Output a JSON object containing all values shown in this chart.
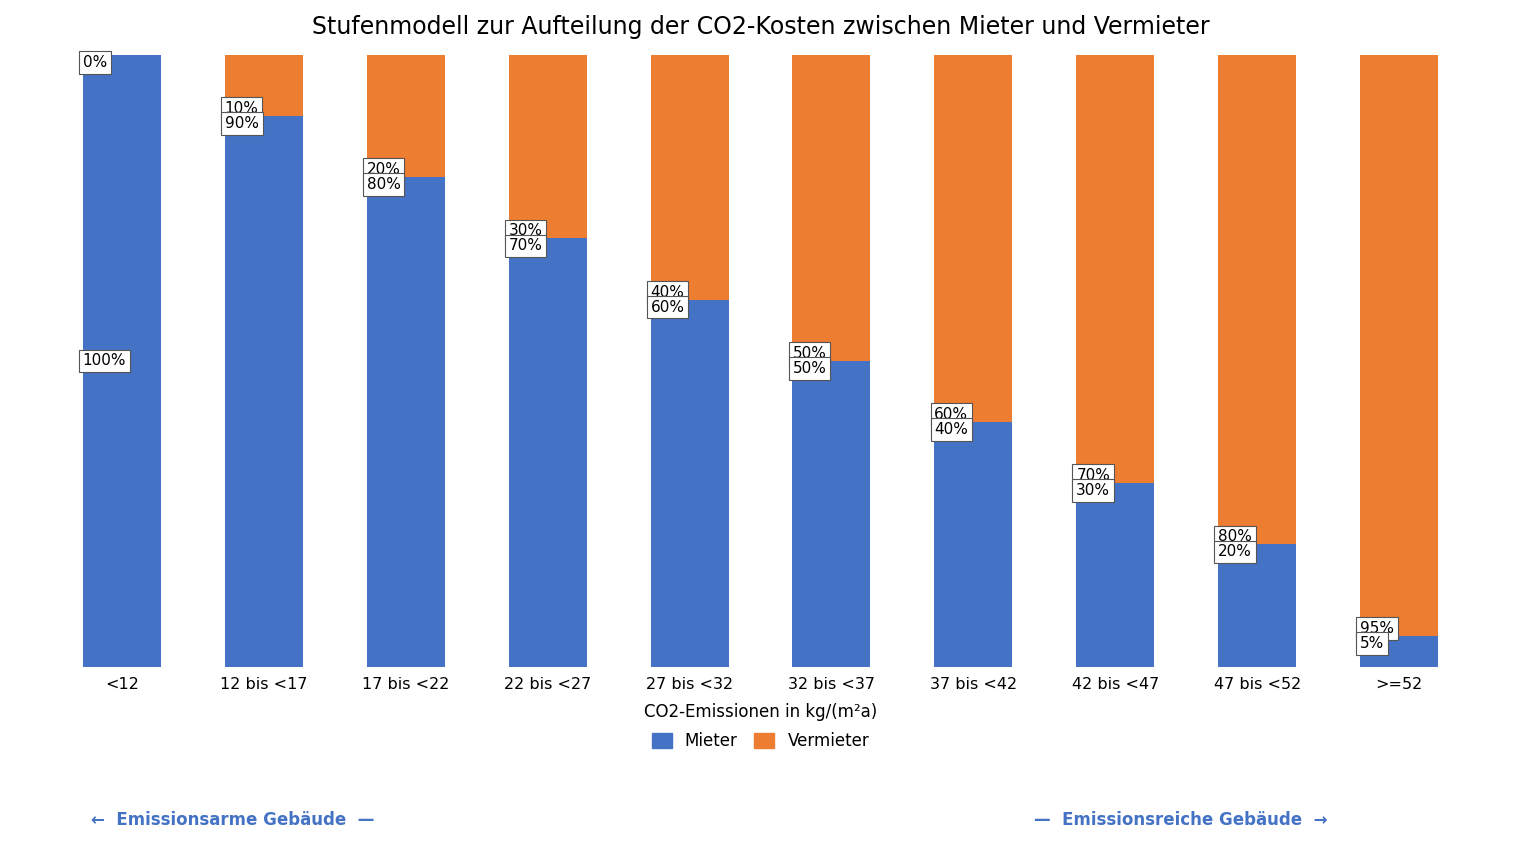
{
  "title": "Stufenmodell zur Aufteilung der CO2-Kosten zwischen Mieter und Vermieter",
  "categories": [
    "<12",
    "12 bis <17",
    "17 bis <22",
    "22 bis <27",
    "27 bis <32",
    "32 bis <37",
    "37 bis <42",
    "42 bis <47",
    "47 bis <52",
    ">=52"
  ],
  "mieter_pct": [
    100,
    90,
    80,
    70,
    60,
    50,
    40,
    30,
    20,
    5
  ],
  "vermieter_pct": [
    0,
    10,
    20,
    30,
    40,
    50,
    60,
    70,
    80,
    95
  ],
  "mieter_color": "#4472C4",
  "vermieter_color": "#ED7D31",
  "bar_width": 0.55,
  "xlabel": "CO2-Emissionen in kg/(m²a)",
  "ylim": [
    0,
    100
  ],
  "background_color": "#FFFFFF",
  "grid_color": "#C0C0C0",
  "title_fontsize": 17,
  "label_fontsize": 12,
  "tick_fontsize": 11.5,
  "annotation_fontsize": 11,
  "legend_fontsize": 12,
  "legend_text_left": "←  Emissionsarme Gebäude  —",
  "legend_text_right": "—  Emissionsreiche Gebäude  →",
  "legend_color": "#4472C4"
}
